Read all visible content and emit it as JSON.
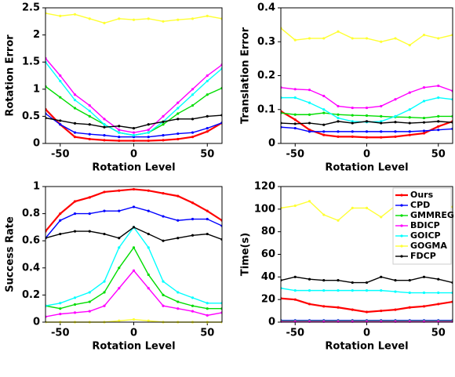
{
  "chart_data": [
    {
      "type": "line",
      "xlabel": "Rotation Level",
      "ylabel": "Rotation Error",
      "x": [
        -60,
        -50,
        -40,
        -30,
        -20,
        -10,
        0,
        10,
        20,
        30,
        40,
        50,
        60
      ],
      "xlim": [
        -60,
        60
      ],
      "xticks": [
        -50,
        0,
        50
      ],
      "ylim": [
        0,
        2.5
      ],
      "yticks": [
        0,
        0.5,
        1,
        1.5,
        2,
        2.5
      ],
      "series": [
        {
          "color": "#ff0000",
          "values": [
            0.63,
            0.35,
            0.12,
            0.08,
            0.06,
            0.05,
            0.05,
            0.05,
            0.06,
            0.08,
            0.12,
            0.22,
            0.38
          ]
        },
        {
          "color": "#0000ff",
          "values": [
            0.55,
            0.35,
            0.2,
            0.17,
            0.15,
            0.12,
            0.12,
            0.12,
            0.15,
            0.18,
            0.2,
            0.28,
            0.38
          ]
        },
        {
          "color": "#00dd00",
          "values": [
            1.05,
            0.85,
            0.65,
            0.5,
            0.35,
            0.2,
            0.15,
            0.2,
            0.35,
            0.55,
            0.7,
            0.9,
            1.02
          ]
        },
        {
          "color": "#ff00ff",
          "values": [
            1.57,
            1.25,
            0.9,
            0.7,
            0.45,
            0.25,
            0.2,
            0.25,
            0.5,
            0.75,
            1.0,
            1.25,
            1.45
          ]
        },
        {
          "color": "#00ffff",
          "values": [
            1.5,
            1.15,
            0.8,
            0.6,
            0.35,
            0.2,
            0.15,
            0.2,
            0.4,
            0.65,
            0.9,
            1.15,
            1.38
          ]
        },
        {
          "color": "#ffff33",
          "values": [
            2.4,
            2.35,
            2.38,
            2.3,
            2.22,
            2.3,
            2.28,
            2.3,
            2.25,
            2.28,
            2.3,
            2.35,
            2.3
          ]
        },
        {
          "color": "#000000",
          "values": [
            0.47,
            0.42,
            0.37,
            0.35,
            0.3,
            0.32,
            0.28,
            0.35,
            0.4,
            0.45,
            0.45,
            0.5,
            0.52
          ]
        }
      ]
    },
    {
      "type": "line",
      "xlabel": "Rotation Level",
      "ylabel": "Translation Error",
      "x": [
        -60,
        -50,
        -40,
        -30,
        -20,
        -10,
        0,
        10,
        20,
        30,
        40,
        50,
        60
      ],
      "xlim": [
        -60,
        60
      ],
      "xticks": [
        -50,
        0,
        50
      ],
      "ylim": [
        0,
        0.4
      ],
      "yticks": [
        0,
        0.1,
        0.2,
        0.3,
        0.4
      ],
      "series": [
        {
          "color": "#ff0000",
          "values": [
            0.095,
            0.07,
            0.04,
            0.025,
            0.02,
            0.02,
            0.018,
            0.018,
            0.02,
            0.025,
            0.03,
            0.05,
            0.065
          ]
        },
        {
          "color": "#0000ff",
          "values": [
            0.048,
            0.045,
            0.035,
            0.035,
            0.035,
            0.035,
            0.035,
            0.035,
            0.035,
            0.035,
            0.037,
            0.04,
            0.043
          ]
        },
        {
          "color": "#00dd00",
          "values": [
            0.09,
            0.085,
            0.085,
            0.09,
            0.085,
            0.083,
            0.082,
            0.08,
            0.078,
            0.077,
            0.075,
            0.08,
            0.08
          ]
        },
        {
          "color": "#ff00ff",
          "values": [
            0.165,
            0.16,
            0.158,
            0.14,
            0.11,
            0.105,
            0.105,
            0.11,
            0.13,
            0.15,
            0.165,
            0.17,
            0.155
          ]
        },
        {
          "color": "#00ffff",
          "values": [
            0.135,
            0.135,
            0.12,
            0.1,
            0.075,
            0.065,
            0.063,
            0.065,
            0.08,
            0.1,
            0.125,
            0.135,
            0.13
          ]
        },
        {
          "color": "#ffff33",
          "values": [
            0.34,
            0.305,
            0.31,
            0.31,
            0.33,
            0.31,
            0.31,
            0.3,
            0.31,
            0.29,
            0.32,
            0.31,
            0.32
          ]
        },
        {
          "color": "#000000",
          "values": [
            0.06,
            0.058,
            0.06,
            0.055,
            0.065,
            0.06,
            0.065,
            0.06,
            0.063,
            0.06,
            0.062,
            0.065,
            0.062
          ]
        }
      ]
    },
    {
      "type": "line",
      "xlabel": "Rotation Level",
      "ylabel": "Success Rate",
      "x": [
        -60,
        -50,
        -40,
        -30,
        -20,
        -10,
        0,
        10,
        20,
        30,
        40,
        50,
        60
      ],
      "xlim": [
        -60,
        60
      ],
      "xticks": [
        -50,
        0,
        50
      ],
      "ylim": [
        0,
        1
      ],
      "yticks": [
        0,
        0.2,
        0.4,
        0.6,
        0.8,
        1
      ],
      "series": [
        {
          "color": "#ff0000",
          "values": [
            0.67,
            0.8,
            0.89,
            0.92,
            0.96,
            0.97,
            0.98,
            0.97,
            0.95,
            0.93,
            0.88,
            0.82,
            0.75
          ]
        },
        {
          "color": "#0000ff",
          "values": [
            0.62,
            0.75,
            0.8,
            0.8,
            0.82,
            0.82,
            0.85,
            0.82,
            0.78,
            0.75,
            0.76,
            0.76,
            0.71
          ]
        },
        {
          "color": "#00dd00",
          "values": [
            0.12,
            0.1,
            0.13,
            0.15,
            0.22,
            0.4,
            0.55,
            0.35,
            0.2,
            0.15,
            0.12,
            0.1,
            0.1
          ]
        },
        {
          "color": "#ff00ff",
          "values": [
            0.04,
            0.06,
            0.07,
            0.08,
            0.12,
            0.25,
            0.38,
            0.25,
            0.12,
            0.1,
            0.08,
            0.05,
            0.07
          ]
        },
        {
          "color": "#00ffff",
          "values": [
            0.12,
            0.14,
            0.18,
            0.22,
            0.3,
            0.55,
            0.7,
            0.55,
            0.3,
            0.22,
            0.18,
            0.14,
            0.14
          ]
        },
        {
          "color": "#ffff33",
          "values": [
            0,
            0,
            0,
            0,
            0,
            0.01,
            0.02,
            0.01,
            0,
            0,
            0,
            0,
            0
          ]
        },
        {
          "color": "#000000",
          "values": [
            0.62,
            0.65,
            0.67,
            0.67,
            0.65,
            0.62,
            0.7,
            0.65,
            0.6,
            0.62,
            0.64,
            0.65,
            0.61
          ]
        }
      ]
    },
    {
      "type": "line",
      "xlabel": "Rotation Level",
      "ylabel": "Time(s)",
      "legend": "upper right",
      "x": [
        -60,
        -50,
        -40,
        -30,
        -20,
        -10,
        0,
        10,
        20,
        30,
        40,
        50,
        60
      ],
      "xlim": [
        -60,
        60
      ],
      "xticks": [
        -50,
        0,
        50
      ],
      "ylim": [
        0,
        120
      ],
      "yticks": [
        0,
        20,
        40,
        60,
        80,
        100,
        120
      ],
      "series": [
        {
          "name": "Ours",
          "color": "#ff0000",
          "values": [
            21,
            20,
            16,
            14,
            13,
            11,
            9,
            10,
            11,
            13,
            14,
            16,
            18
          ]
        },
        {
          "name": "CPD",
          "color": "#0000ff",
          "values": [
            1.5,
            1.5,
            1.5,
            1.5,
            1.5,
            1.5,
            1.5,
            1.5,
            1.5,
            1.5,
            1.5,
            1.5,
            1.5
          ]
        },
        {
          "name": "GMMREG",
          "color": "#00dd00",
          "values": [
            1,
            1,
            1,
            1,
            1,
            1,
            1,
            1,
            1,
            1,
            1,
            1,
            1
          ]
        },
        {
          "name": "BDICP",
          "color": "#ff00ff",
          "values": [
            0.5,
            0.5,
            0.5,
            0.5,
            0.5,
            0.5,
            0.5,
            0.5,
            0.5,
            0.5,
            0.5,
            0.5,
            0.5
          ]
        },
        {
          "name": "GOICP",
          "color": "#00ffff",
          "values": [
            30,
            28,
            28,
            28,
            28,
            28,
            28,
            28,
            27,
            26,
            26,
            26,
            26
          ]
        },
        {
          "name": "GOGMA",
          "color": "#ffff33",
          "values": [
            101,
            103,
            107,
            95,
            90,
            101,
            101,
            93,
            103,
            100,
            101,
            102,
            102
          ]
        },
        {
          "name": "FDCP",
          "color": "#000000",
          "values": [
            37,
            40,
            38,
            37,
            37,
            35,
            35,
            40,
            37,
            37,
            40,
            38,
            35
          ]
        }
      ]
    }
  ]
}
